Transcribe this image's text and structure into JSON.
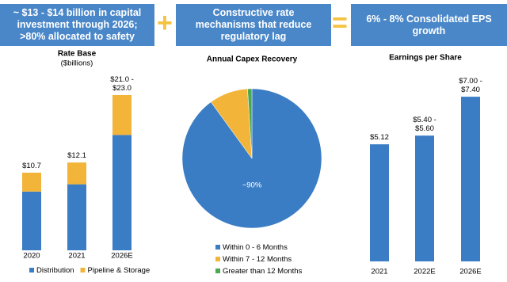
{
  "header": {
    "boxes": [
      "~ $13 - $14 billion in capital investment through 2026; >80% allocated to safety",
      "Constructive rate mechanisms that reduce regulatory lag",
      "6% - 8% Consolidated EPS growth"
    ],
    "operators": [
      "+",
      "="
    ]
  },
  "chart_data": [
    {
      "type": "stacked_bar",
      "title": "Rate Base",
      "subtitle": "($billions)",
      "categories": [
        "2020",
        "2021",
        "2026E"
      ],
      "series": [
        {
          "name": "Distribution",
          "color": "#3b7dc4",
          "values": [
            8.1,
            9.1,
            15.9
          ]
        },
        {
          "name": "Pipeline & Storage",
          "color": "#f2b53a",
          "values": [
            2.6,
            3.0,
            5.5
          ]
        }
      ],
      "total_labels": [
        "$10.7",
        "$12.1",
        "$21.0 - $23.0"
      ],
      "ylim": [
        0,
        25
      ]
    },
    {
      "type": "pie",
      "title": "Annual Capex Recovery",
      "categories": [
        "Within 0 - 6 Months",
        "Within 7 - 12 Months",
        "Greater than 12 Months"
      ],
      "values": [
        90,
        9,
        1
      ],
      "value_labels": [
        "~90%",
        null,
        null
      ],
      "colors": [
        "#3b7dc4",
        "#f2b53a",
        "#4aa84e"
      ]
    },
    {
      "type": "bar",
      "title": "Earnings per Share",
      "categories": [
        "2021",
        "2022E",
        "2026E"
      ],
      "values": [
        5.12,
        5.5,
        7.2
      ],
      "value_labels": [
        "$5.12",
        "$5.40 - $5.60",
        "$7.00 - $7.40"
      ],
      "color": "#3b7dc4",
      "ylim": [
        0,
        8
      ]
    }
  ]
}
